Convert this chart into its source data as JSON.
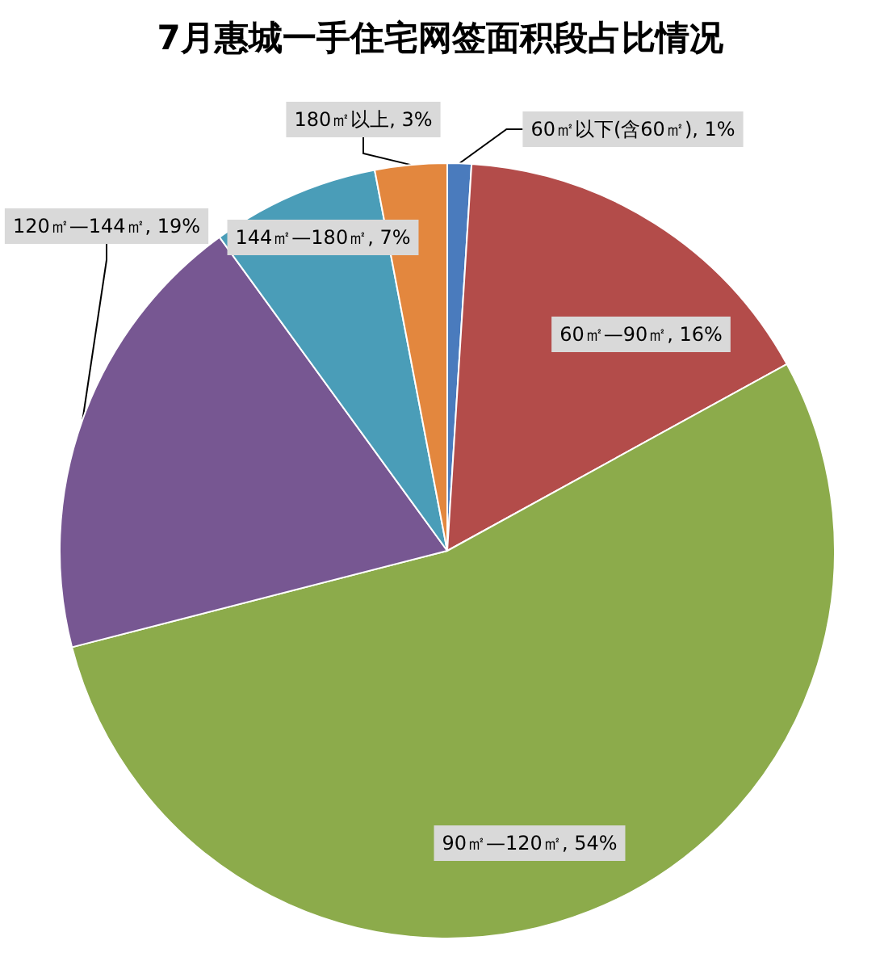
{
  "chart_data": {
    "type": "pie",
    "title": "7月惠城一手住宅网签面积段占比情况",
    "categories": [
      "60㎡以下(含60㎡)",
      "60㎡—90㎡",
      "90㎡—120㎡",
      "120㎡—144㎡",
      "144㎡—180㎡",
      "180㎡以上"
    ],
    "values": [
      1,
      16,
      54,
      19,
      7,
      3
    ],
    "value_labels": [
      "1%",
      "16%",
      "54%",
      "19%",
      "7%",
      "3%"
    ],
    "colors": [
      "#4a7bbd",
      "#b34c4a",
      "#8cab4b",
      "#775792",
      "#4a9db8",
      "#e3873e"
    ]
  }
}
